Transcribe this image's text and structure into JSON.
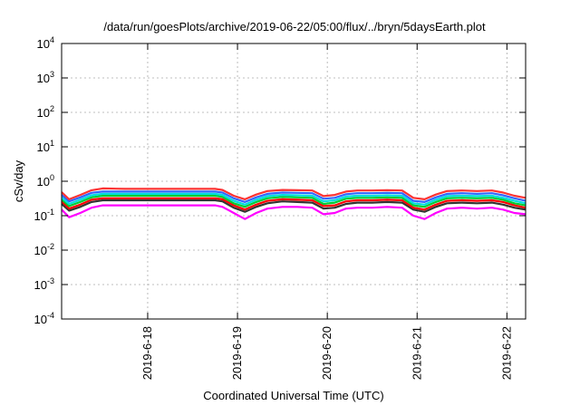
{
  "chart_data": {
    "type": "line",
    "title": "/data/run/goesPlots/archive/2019-06-22/05:00/flux/../bryn/5daysEarth.plot",
    "xlabel": "Coordinated Universal Time (UTC)",
    "ylabel": "cSv/day",
    "yscale": "log",
    "ylim": [
      0.0001,
      10000
    ],
    "xlim": [
      "2019-06-17T01:00",
      "2019-06-22T05:00"
    ],
    "grid": true,
    "legend": "none",
    "y_ticks": [
      {
        "value": 0.0001,
        "base": "10",
        "exp": "-4"
      },
      {
        "value": 0.001,
        "base": "10",
        "exp": "-3"
      },
      {
        "value": 0.01,
        "base": "10",
        "exp": "-2"
      },
      {
        "value": 0.1,
        "base": "10",
        "exp": "-1"
      },
      {
        "value": 1,
        "base": "10",
        "exp": "0"
      },
      {
        "value": 10,
        "base": "10",
        "exp": "1"
      },
      {
        "value": 100,
        "base": "10",
        "exp": "2"
      },
      {
        "value": 1000,
        "base": "10",
        "exp": "3"
      },
      {
        "value": 10000,
        "base": "10",
        "exp": "4"
      }
    ],
    "x_ticks": [
      {
        "value": "2019-06-18T00:00",
        "label": "2019-6-18"
      },
      {
        "value": "2019-06-19T00:00",
        "label": "2019-6-19"
      },
      {
        "value": "2019-06-20T00:00",
        "label": "2019-6-20"
      },
      {
        "value": "2019-06-21T00:00",
        "label": "2019-6-21"
      },
      {
        "value": "2019-06-22T00:00",
        "label": "2019-6-22"
      }
    ],
    "x": [
      "2019-06-17T01:00",
      "2019-06-17T03:00",
      "2019-06-17T06:00",
      "2019-06-17T09:00",
      "2019-06-17T12:00",
      "2019-06-17T18:00",
      "2019-06-18T00:00",
      "2019-06-18T06:00",
      "2019-06-18T12:00",
      "2019-06-18T18:00",
      "2019-06-18T20:00",
      "2019-06-18T23:00",
      "2019-06-19T02:00",
      "2019-06-19T05:00",
      "2019-06-19T08:00",
      "2019-06-19T12:00",
      "2019-06-19T16:00",
      "2019-06-19T20:00",
      "2019-06-19T23:00",
      "2019-06-20T02:00",
      "2019-06-20T05:00",
      "2019-06-20T08:00",
      "2019-06-20T12:00",
      "2019-06-20T16:00",
      "2019-06-20T20:00",
      "2019-06-20T23:00",
      "2019-06-21T02:00",
      "2019-06-21T05:00",
      "2019-06-21T08:00",
      "2019-06-21T12:00",
      "2019-06-21T16:00",
      "2019-06-21T20:00",
      "2019-06-21T23:00",
      "2019-06-22T02:00",
      "2019-06-22T05:00"
    ],
    "series": [
      {
        "color": "#ff00ff",
        "values": [
          0.15,
          0.09,
          0.12,
          0.17,
          0.2,
          0.2,
          0.2,
          0.2,
          0.2,
          0.2,
          0.18,
          0.12,
          0.08,
          0.12,
          0.16,
          0.18,
          0.18,
          0.17,
          0.11,
          0.12,
          0.16,
          0.17,
          0.17,
          0.18,
          0.17,
          0.1,
          0.08,
          0.12,
          0.16,
          0.17,
          0.16,
          0.17,
          0.15,
          0.12,
          0.11
        ]
      },
      {
        "color": "#333333",
        "values": [
          0.22,
          0.14,
          0.18,
          0.25,
          0.28,
          0.28,
          0.28,
          0.28,
          0.28,
          0.28,
          0.26,
          0.17,
          0.13,
          0.18,
          0.23,
          0.26,
          0.25,
          0.24,
          0.16,
          0.17,
          0.22,
          0.24,
          0.24,
          0.25,
          0.24,
          0.15,
          0.13,
          0.18,
          0.23,
          0.24,
          0.23,
          0.24,
          0.21,
          0.17,
          0.15
        ]
      },
      {
        "color": "#ff0000",
        "values": [
          0.26,
          0.16,
          0.21,
          0.29,
          0.32,
          0.32,
          0.32,
          0.32,
          0.32,
          0.32,
          0.3,
          0.2,
          0.15,
          0.21,
          0.27,
          0.3,
          0.29,
          0.28,
          0.19,
          0.2,
          0.26,
          0.28,
          0.28,
          0.29,
          0.28,
          0.17,
          0.15,
          0.21,
          0.27,
          0.28,
          0.27,
          0.28,
          0.25,
          0.2,
          0.17
        ]
      },
      {
        "color": "#00cc33",
        "values": [
          0.3,
          0.19,
          0.25,
          0.34,
          0.38,
          0.38,
          0.38,
          0.38,
          0.38,
          0.38,
          0.35,
          0.23,
          0.18,
          0.25,
          0.32,
          0.35,
          0.34,
          0.33,
          0.22,
          0.24,
          0.31,
          0.33,
          0.33,
          0.34,
          0.33,
          0.2,
          0.18,
          0.25,
          0.32,
          0.33,
          0.32,
          0.33,
          0.29,
          0.23,
          0.2
        ]
      },
      {
        "color": "#00dddd",
        "values": [
          0.34,
          0.22,
          0.29,
          0.39,
          0.43,
          0.43,
          0.43,
          0.43,
          0.43,
          0.43,
          0.4,
          0.27,
          0.21,
          0.29,
          0.37,
          0.4,
          0.39,
          0.38,
          0.26,
          0.28,
          0.36,
          0.38,
          0.38,
          0.39,
          0.38,
          0.23,
          0.21,
          0.29,
          0.37,
          0.38,
          0.37,
          0.38,
          0.33,
          0.27,
          0.23
        ]
      },
      {
        "color": "#3366ff",
        "values": [
          0.4,
          0.26,
          0.34,
          0.46,
          0.5,
          0.5,
          0.5,
          0.5,
          0.5,
          0.5,
          0.47,
          0.32,
          0.25,
          0.34,
          0.43,
          0.47,
          0.46,
          0.45,
          0.31,
          0.33,
          0.42,
          0.45,
          0.45,
          0.46,
          0.45,
          0.27,
          0.25,
          0.34,
          0.43,
          0.45,
          0.43,
          0.45,
          0.39,
          0.32,
          0.27
        ]
      },
      {
        "color": "#ff3333",
        "values": [
          0.48,
          0.3,
          0.4,
          0.55,
          0.62,
          0.6,
          0.6,
          0.6,
          0.6,
          0.6,
          0.56,
          0.38,
          0.3,
          0.41,
          0.52,
          0.56,
          0.55,
          0.54,
          0.37,
          0.4,
          0.5,
          0.54,
          0.54,
          0.55,
          0.54,
          0.33,
          0.3,
          0.41,
          0.52,
          0.54,
          0.52,
          0.54,
          0.47,
          0.38,
          0.33
        ]
      }
    ]
  }
}
